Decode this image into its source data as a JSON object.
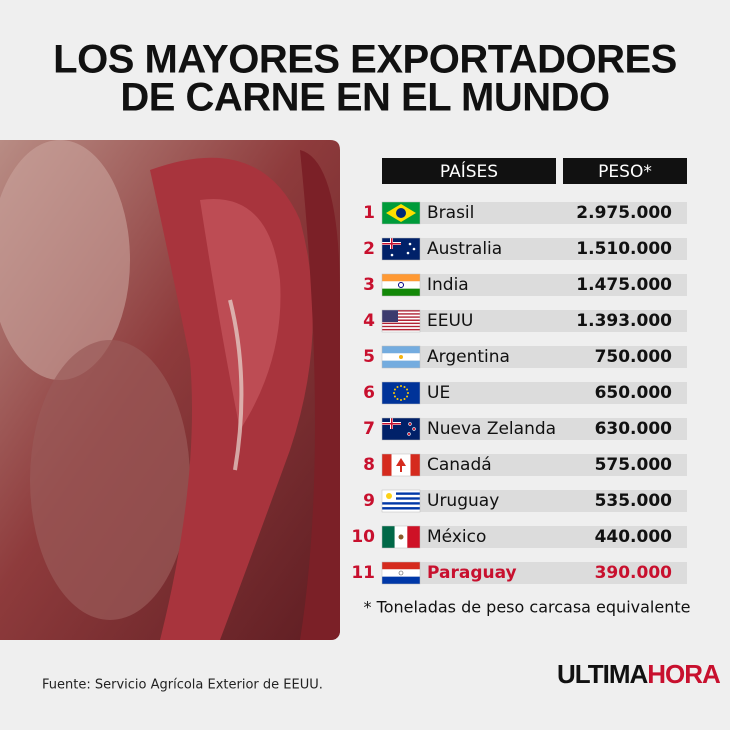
{
  "header": {
    "title_lines": [
      "LOS MAYORES EXPORTADORES",
      "DE CARNE EN EL MUNDO"
    ]
  },
  "table": {
    "headers": [
      "PAÍSES",
      "PESO*"
    ],
    "rows": [
      [
        "1",
        "Brasil",
        "2.975.000"
      ],
      [
        "2",
        "Australia",
        "1.510.000"
      ],
      [
        "3",
        "India",
        "1.475.000"
      ],
      [
        "4",
        "EEUU",
        "1.393.000"
      ],
      [
        "5",
        "Argentina",
        "750.000"
      ],
      [
        "6",
        "UE",
        "650.000"
      ],
      [
        "7",
        "Nueva Zelanda",
        "630.000"
      ],
      [
        "8",
        "Canadá",
        "575.000"
      ],
      [
        "9",
        "Uruguay",
        "535.000"
      ],
      [
        "10",
        "México",
        "440.000"
      ],
      [
        "11",
        "Paraguay",
        "390.000"
      ]
    ]
  },
  "note": "* Toneladas de peso carcasa equivalente",
  "source": "Fuente: Servicio Agrícola Exterior de EEUU.",
  "logo": {
    "part1": "ULTIMA",
    "part2": "HORA"
  }
}
